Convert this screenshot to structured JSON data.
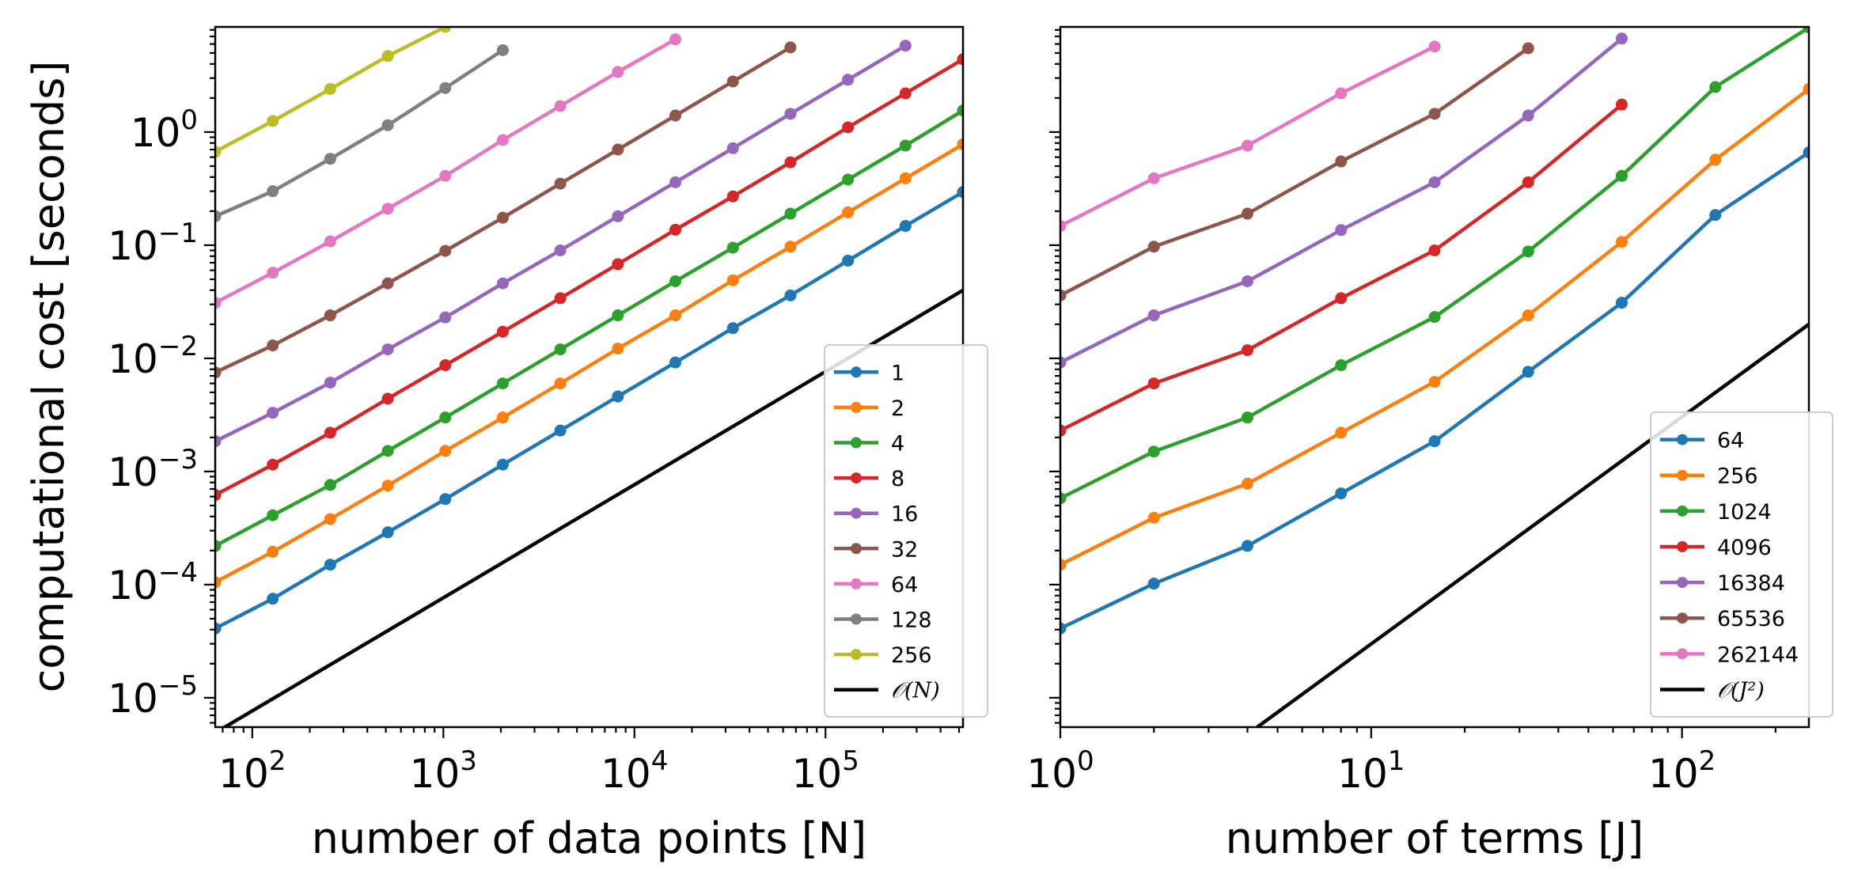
{
  "figure": {
    "ylabel": "computational cost [seconds]"
  },
  "chart_data": [
    {
      "type": "line",
      "xlabel": "number of data points [N]",
      "ylabel": "computational cost [seconds]",
      "xscale": "log",
      "yscale": "log",
      "xlim": [
        64,
        524288
      ],
      "ylim": [
        5.5e-06,
        8.5
      ],
      "xticks": [
        {
          "base": "10",
          "exp": "2",
          "value": 100
        },
        {
          "base": "10",
          "exp": "3",
          "value": 1000
        },
        {
          "base": "10",
          "exp": "4",
          "value": 10000
        },
        {
          "base": "10",
          "exp": "5",
          "value": 100000
        }
      ],
      "yticks": [
        {
          "base": "10",
          "exp": "0",
          "value": 1
        },
        {
          "base": "10",
          "exp": "−1",
          "value": 0.1
        },
        {
          "base": "10",
          "exp": "−2",
          "value": 0.01
        },
        {
          "base": "10",
          "exp": "−3",
          "value": 0.001
        },
        {
          "base": "10",
          "exp": "−4",
          "value": 0.0001
        },
        {
          "base": "10",
          "exp": "−5",
          "value": 1e-05
        }
      ],
      "legend_position": "lower-right",
      "series": [
        {
          "name": "1",
          "color": "#1f77b4",
          "points": [
            [
              64,
              4.1e-05
            ],
            [
              128,
              7.5e-05
            ],
            [
              256,
              0.00015
            ],
            [
              512,
              0.00029
            ],
            [
              1024,
              0.00057
            ],
            [
              2048,
              0.00115
            ],
            [
              4096,
              0.0023
            ],
            [
              8192,
              0.0046
            ],
            [
              16384,
              0.0092
            ],
            [
              32768,
              0.0185
            ],
            [
              65536,
              0.036
            ],
            [
              131072,
              0.073
            ],
            [
              262144,
              0.148
            ],
            [
              524288,
              0.295
            ]
          ]
        },
        {
          "name": "2",
          "color": "#ff7f0e",
          "points": [
            [
              64,
              0.000105
            ],
            [
              128,
              0.000195
            ],
            [
              256,
              0.00038
            ],
            [
              512,
              0.00075
            ],
            [
              1024,
              0.00152
            ],
            [
              2048,
              0.003
            ],
            [
              4096,
              0.006
            ],
            [
              8192,
              0.0122
            ],
            [
              16384,
              0.024
            ],
            [
              32768,
              0.049
            ],
            [
              65536,
              0.097
            ],
            [
              131072,
              0.195
            ],
            [
              262144,
              0.39
            ],
            [
              524288,
              0.78
            ]
          ]
        },
        {
          "name": "4",
          "color": "#2ca02c",
          "points": [
            [
              64,
              0.00022
            ],
            [
              128,
              0.00041
            ],
            [
              256,
              0.00076
            ],
            [
              512,
              0.00152
            ],
            [
              1024,
              0.003
            ],
            [
              2048,
              0.006
            ],
            [
              4096,
              0.012
            ],
            [
              8192,
              0.024
            ],
            [
              16384,
              0.048
            ],
            [
              32768,
              0.095
            ],
            [
              65536,
              0.19
            ],
            [
              131072,
              0.38
            ],
            [
              262144,
              0.76
            ],
            [
              524288,
              1.55
            ]
          ]
        },
        {
          "name": "8",
          "color": "#d62728",
          "points": [
            [
              64,
              0.00062
            ],
            [
              128,
              0.00115
            ],
            [
              256,
              0.0022
            ],
            [
              512,
              0.0044
            ],
            [
              1024,
              0.0087
            ],
            [
              2048,
              0.0172
            ],
            [
              4096,
              0.034
            ],
            [
              8192,
              0.068
            ],
            [
              16384,
              0.137
            ],
            [
              32768,
              0.27
            ],
            [
              65536,
              0.54
            ],
            [
              131072,
              1.1
            ],
            [
              262144,
              2.2
            ],
            [
              524288,
              4.4
            ]
          ]
        },
        {
          "name": "16",
          "color": "#9467bd",
          "points": [
            [
              64,
              0.00185
            ],
            [
              128,
              0.0033
            ],
            [
              256,
              0.0061
            ],
            [
              512,
              0.012
            ],
            [
              1024,
              0.023
            ],
            [
              2048,
              0.046
            ],
            [
              4096,
              0.09
            ],
            [
              8192,
              0.18
            ],
            [
              16384,
              0.36
            ],
            [
              32768,
              0.72
            ],
            [
              65536,
              1.45
            ],
            [
              131072,
              2.9
            ],
            [
              262144,
              5.8
            ]
          ]
        },
        {
          "name": "32",
          "color": "#8c564b",
          "points": [
            [
              64,
              0.0075
            ],
            [
              128,
              0.013
            ],
            [
              256,
              0.024
            ],
            [
              512,
              0.046
            ],
            [
              1024,
              0.089
            ],
            [
              2048,
              0.175
            ],
            [
              4096,
              0.35
            ],
            [
              8192,
              0.7
            ],
            [
              16384,
              1.4
            ],
            [
              32768,
              2.8
            ],
            [
              65536,
              5.6
            ]
          ]
        },
        {
          "name": "64",
          "color": "#e377c2",
          "points": [
            [
              64,
              0.031
            ],
            [
              128,
              0.057
            ],
            [
              256,
              0.108
            ],
            [
              512,
              0.21
            ],
            [
              1024,
              0.41
            ],
            [
              2048,
              0.85
            ],
            [
              4096,
              1.7
            ],
            [
              8192,
              3.4
            ],
            [
              16384,
              6.6
            ]
          ]
        },
        {
          "name": "128",
          "color": "#7f7f7f",
          "points": [
            [
              64,
              0.18
            ],
            [
              128,
              0.3
            ],
            [
              256,
              0.58
            ],
            [
              512,
              1.15
            ],
            [
              1024,
              2.45
            ],
            [
              2048,
              5.3
            ]
          ]
        },
        {
          "name": "256",
          "color": "#bcbd22",
          "points": [
            [
              64,
              0.67
            ],
            [
              128,
              1.25
            ],
            [
              256,
              2.4
            ],
            [
              512,
              4.7
            ],
            [
              1024,
              8.5
            ]
          ]
        },
        {
          "name": "𝒪(N)",
          "color": "#000000",
          "reference": true,
          "markers": false,
          "points": [
            [
              64,
              4.9e-06
            ],
            [
              524288,
              0.04
            ]
          ]
        }
      ]
    },
    {
      "type": "line",
      "xlabel": "number of terms [J]",
      "xscale": "log",
      "yscale": "log",
      "xlim": [
        1,
        256
      ],
      "ylim": [
        5.5e-06,
        8.5
      ],
      "shared_y": true,
      "xticks": [
        {
          "base": "10",
          "exp": "0",
          "value": 1
        },
        {
          "base": "10",
          "exp": "1",
          "value": 10
        },
        {
          "base": "10",
          "exp": "2",
          "value": 100
        }
      ],
      "legend_position": "lower-right",
      "series": [
        {
          "name": "64",
          "color": "#1f77b4",
          "points": [
            [
              1,
              4.1e-05
            ],
            [
              2,
              0.000102
            ],
            [
              4,
              0.00022
            ],
            [
              8,
              0.00064
            ],
            [
              16,
              0.00185
            ],
            [
              32,
              0.0076
            ],
            [
              64,
              0.031
            ],
            [
              128,
              0.185
            ],
            [
              256,
              0.66
            ]
          ]
        },
        {
          "name": "256",
          "color": "#ff7f0e",
          "points": [
            [
              1,
              0.00015
            ],
            [
              2,
              0.00039
            ],
            [
              4,
              0.00078
            ],
            [
              8,
              0.0022
            ],
            [
              16,
              0.0062
            ],
            [
              32,
              0.024
            ],
            [
              64,
              0.107
            ],
            [
              128,
              0.57
            ],
            [
              256,
              2.4
            ]
          ]
        },
        {
          "name": "1024",
          "color": "#2ca02c",
          "points": [
            [
              1,
              0.00058
            ],
            [
              2,
              0.0015
            ],
            [
              4,
              0.003
            ],
            [
              8,
              0.0087
            ],
            [
              16,
              0.0232
            ],
            [
              32,
              0.088
            ],
            [
              64,
              0.41
            ],
            [
              128,
              2.5
            ],
            [
              256,
              8.4
            ]
          ]
        },
        {
          "name": "4096",
          "color": "#d62728",
          "points": [
            [
              1,
              0.0023
            ],
            [
              2,
              0.006
            ],
            [
              4,
              0.0118
            ],
            [
              8,
              0.034
            ],
            [
              16,
              0.09
            ],
            [
              32,
              0.36
            ],
            [
              64,
              1.75
            ]
          ]
        },
        {
          "name": "16384",
          "color": "#9467bd",
          "points": [
            [
              1,
              0.0092
            ],
            [
              2,
              0.024
            ],
            [
              4,
              0.048
            ],
            [
              8,
              0.136
            ],
            [
              16,
              0.36
            ],
            [
              32,
              1.4
            ],
            [
              64,
              6.7
            ]
          ]
        },
        {
          "name": "65536",
          "color": "#8c564b",
          "points": [
            [
              1,
              0.036
            ],
            [
              2,
              0.097
            ],
            [
              4,
              0.19
            ],
            [
              8,
              0.55
            ],
            [
              16,
              1.45
            ],
            [
              32,
              5.5
            ]
          ]
        },
        {
          "name": "262144",
          "color": "#e377c2",
          "points": [
            [
              1,
              0.148
            ],
            [
              2,
              0.39
            ],
            [
              4,
              0.76
            ],
            [
              8,
              2.2
            ],
            [
              16,
              5.7
            ]
          ]
        },
        {
          "name": "𝒪(J²)",
          "color": "#000000",
          "reference": true,
          "markers": false,
          "points": [
            [
              4.3,
              5.5e-06
            ],
            [
              256,
              0.02
            ]
          ]
        }
      ]
    }
  ]
}
